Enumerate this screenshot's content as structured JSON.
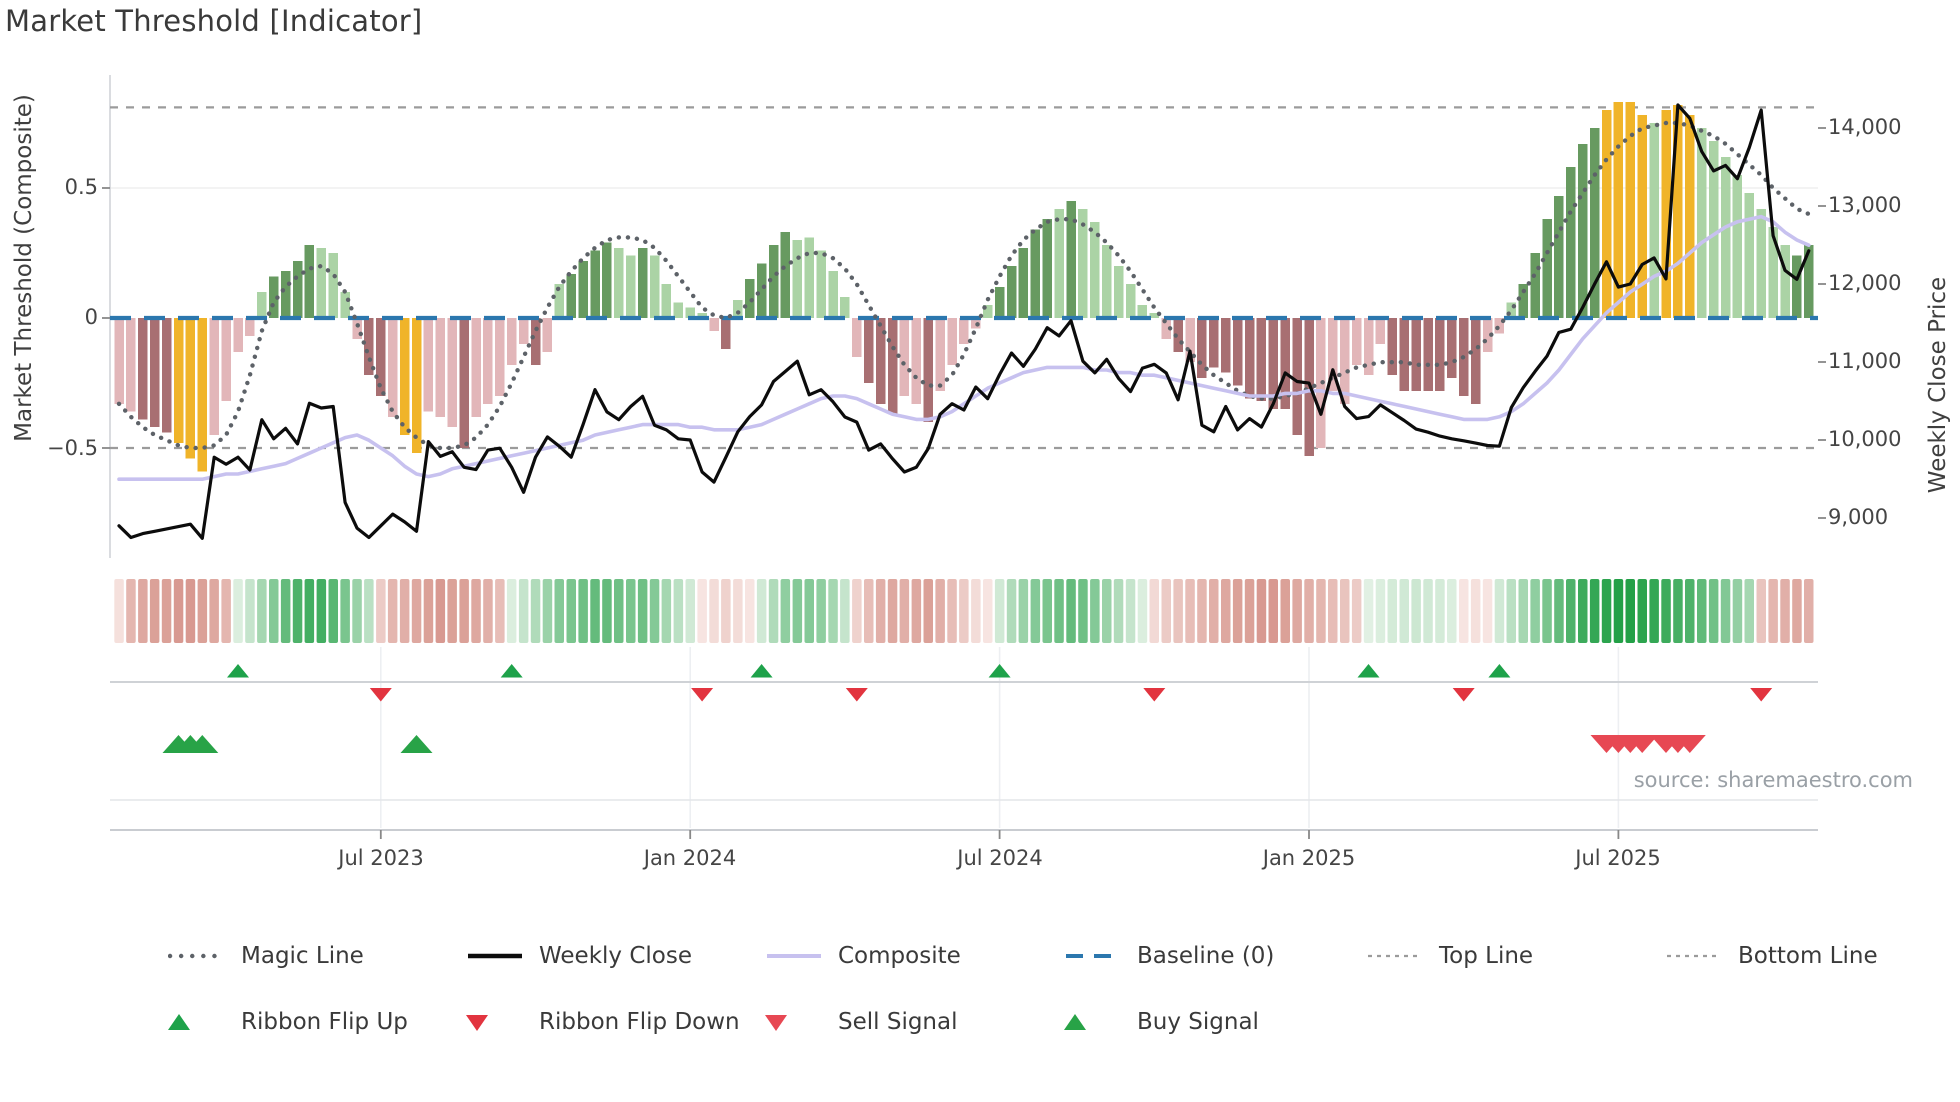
{
  "title": "Market Threshold [Indicator]",
  "source": "source: sharemaestro.com",
  "axes": {
    "left_label": "Market Threshold (Composite)",
    "right_label": "Weekly Close Price",
    "left_ticks": [
      "0.5",
      "0",
      "−0.5"
    ],
    "left_tick_values": [
      0.5,
      0,
      -0.5
    ],
    "right_ticks": [
      "14,000",
      "13,000",
      "12,000",
      "11,000",
      "10,000",
      "9,000"
    ],
    "right_tick_values": [
      14000,
      13000,
      12000,
      11000,
      10000,
      9000
    ],
    "x_ticks": [
      "Jul 2023",
      "Jan 2024",
      "Jul 2024",
      "Jan 2025",
      "Jul 2025"
    ]
  },
  "legend": {
    "row1": [
      {
        "label": "Magic Line",
        "swatch": "dotted-gray"
      },
      {
        "label": "Weekly Close",
        "swatch": "solid-black"
      },
      {
        "label": "Composite",
        "swatch": "solid-purple"
      },
      {
        "label": "Baseline (0)",
        "swatch": "dashed-blue"
      },
      {
        "label": "Top Line",
        "swatch": "dashed-gray"
      },
      {
        "label": "Bottom Line",
        "swatch": "dashed-gray"
      }
    ],
    "row2": [
      {
        "label": "Ribbon Flip Up",
        "swatch": "triangle-up-green"
      },
      {
        "label": "Ribbon Flip Down",
        "swatch": "triangle-down-red"
      },
      {
        "label": "Sell Signal",
        "swatch": "triangle-down-sell"
      },
      {
        "label": "Buy Signal",
        "swatch": "triangle-up-buy"
      }
    ]
  },
  "colors": {
    "bar_pink": "#e2b6b9",
    "bar_mauve": "#a86f72",
    "bar_gold": "#f0b429",
    "bar_light_green": "#abd3a5",
    "bar_dark_green": "#679a60",
    "baseline_blue": "#2b77ae",
    "composite_purple": "#c7c1ef",
    "magic_gray": "#5d6268",
    "close_black": "#0c0c0c",
    "band_gray": "#9b9b9b",
    "grid_light": "#ececec",
    "signal_green": "#1ea24a",
    "signal_red": "#e2343f",
    "sell_red": "#e74853",
    "buy_green": "#28a347",
    "ribbon_green_max": "#23a047",
    "ribbon_red_max": "#c4685c",
    "text_soft": "#9aa0a6"
  },
  "chart_data": {
    "type": "bar",
    "subtype": "composite-indicator-with-price-overlay",
    "title": "Market Threshold [Indicator]",
    "xlabel": "",
    "ylabel_left": "Market Threshold (Composite)",
    "ylabel_right": "Weekly Close Price",
    "weeks": 143,
    "x_tick_weeks": [
      22,
      48,
      74,
      100,
      126
    ],
    "x_tick_labels": [
      "Jul 2023",
      "Jan 2024",
      "Jul 2024",
      "Jan 2025",
      "Jul 2025"
    ],
    "left_ylim": [
      -0.92,
      0.94
    ],
    "right_ylim": [
      8550,
      14680
    ],
    "reference_lines": {
      "baseline": 0,
      "top_line": 0.81,
      "bottom_line": -0.5
    },
    "grid": "single horizontal gridline at +0.5; faint vertical gridlines in signal panel at date ticks",
    "legend_position": "bottom, two rows",
    "histogram": [
      -0.33,
      -0.36,
      -0.39,
      -0.42,
      -0.44,
      -0.48,
      -0.54,
      -0.59,
      -0.45,
      -0.32,
      -0.13,
      -0.07,
      0.1,
      0.16,
      0.18,
      0.22,
      0.28,
      0.27,
      0.25,
      0.1,
      -0.08,
      -0.22,
      -0.3,
      -0.38,
      -0.45,
      -0.52,
      -0.36,
      -0.38,
      -0.42,
      -0.5,
      -0.38,
      -0.33,
      -0.3,
      -0.18,
      -0.1,
      -0.18,
      -0.13,
      0.13,
      0.17,
      0.22,
      0.26,
      0.29,
      0.27,
      0.24,
      0.27,
      0.24,
      0.13,
      0.06,
      0.04,
      0.02,
      -0.05,
      -0.12,
      0.07,
      0.15,
      0.21,
      0.28,
      0.33,
      0.3,
      0.31,
      0.26,
      0.18,
      0.08,
      -0.15,
      -0.25,
      -0.33,
      -0.37,
      -0.3,
      -0.33,
      -0.4,
      -0.28,
      -0.18,
      -0.1,
      -0.04,
      0.05,
      0.12,
      0.2,
      0.27,
      0.34,
      0.38,
      0.42,
      0.45,
      0.42,
      0.37,
      0.28,
      0.2,
      0.13,
      0.05,
      0.02,
      -0.08,
      -0.13,
      -0.17,
      -0.23,
      -0.19,
      -0.21,
      -0.26,
      -0.31,
      -0.32,
      -0.35,
      -0.35,
      -0.45,
      -0.53,
      -0.5,
      -0.28,
      -0.33,
      -0.18,
      -0.22,
      -0.1,
      -0.22,
      -0.28,
      -0.28,
      -0.28,
      -0.28,
      -0.23,
      -0.3,
      -0.33,
      -0.13,
      -0.06,
      0.06,
      0.13,
      0.25,
      0.38,
      0.47,
      0.58,
      0.67,
      0.73,
      0.8,
      0.83,
      0.83,
      0.78,
      0.75,
      0.8,
      0.82,
      0.78,
      0.73,
      0.68,
      0.62,
      0.55,
      0.48,
      0.42,
      0.35,
      0.28,
      0.24,
      0.28
    ],
    "histogram_palette": "ppdddgggppppleeeelllpddpggpppdpppppdpleeeellelllllpdleeeelllllpdddppdppppleeeeelelllllllpdpddddddddddppppppddddddddppleeeeeeegggglgggllllllllee",
    "palette_key": {
      "p": "light-pink",
      "d": "dark-mauve",
      "g": "gold-highlight",
      "l": "light-green",
      "e": "dark-green"
    },
    "weekly_close": [
      8900,
      8750,
      8800,
      8830,
      8860,
      8890,
      8920,
      8740,
      9780,
      9690,
      9780,
      9615,
      10260,
      10015,
      10150,
      9950,
      10470,
      10410,
      10430,
      9200,
      8870,
      8750,
      8900,
      9050,
      8950,
      8830,
      9980,
      9790,
      9850,
      9650,
      9620,
      9870,
      9895,
      9650,
      9330,
      9780,
      10040,
      9920,
      9780,
      10200,
      10645,
      10360,
      10260,
      10430,
      10560,
      10190,
      10130,
      10015,
      10000,
      9590,
      9460,
      9780,
      10105,
      10300,
      10450,
      10750,
      10880,
      11010,
      10580,
      10645,
      10490,
      10295,
      10230,
      9870,
      9950,
      9760,
      9590,
      9650,
      9890,
      10330,
      10465,
      10385,
      10680,
      10530,
      10840,
      11115,
      10945,
      11165,
      11440,
      11335,
      11530,
      11010,
      10860,
      11035,
      10790,
      10620,
      10920,
      10970,
      10860,
      10515,
      11140,
      10190,
      10105,
      10430,
      10130,
      10275,
      10165,
      10465,
      10860,
      10750,
      10730,
      10330,
      10900,
      10430,
      10275,
      10300,
      10450,
      10350,
      10250,
      10140,
      10100,
      10050,
      10015,
      9990,
      9960,
      9930,
      9920,
      10415,
      10670,
      10880,
      11075,
      11380,
      11420,
      11700,
      12000,
      12285,
      11960,
      12000,
      12250,
      12335,
      12065,
      14295,
      14125,
      13700,
      13450,
      13520,
      13350,
      13750,
      14230,
      12620,
      12175,
      12060,
      12425
    ],
    "composite": [
      -0.62,
      -0.62,
      -0.62,
      -0.62,
      -0.62,
      -0.62,
      -0.62,
      -0.62,
      -0.61,
      -0.6,
      -0.6,
      -0.59,
      -0.58,
      -0.57,
      -0.56,
      -0.54,
      -0.52,
      -0.5,
      -0.48,
      -0.46,
      -0.45,
      -0.47,
      -0.5,
      -0.53,
      -0.57,
      -0.6,
      -0.61,
      -0.6,
      -0.58,
      -0.57,
      -0.56,
      -0.55,
      -0.54,
      -0.53,
      -0.52,
      -0.51,
      -0.5,
      -0.49,
      -0.48,
      -0.47,
      -0.45,
      -0.44,
      -0.43,
      -0.42,
      -0.41,
      -0.41,
      -0.41,
      -0.41,
      -0.42,
      -0.42,
      -0.43,
      -0.43,
      -0.43,
      -0.42,
      -0.41,
      -0.39,
      -0.37,
      -0.35,
      -0.33,
      -0.31,
      -0.3,
      -0.3,
      -0.31,
      -0.33,
      -0.35,
      -0.37,
      -0.38,
      -0.39,
      -0.39,
      -0.38,
      -0.36,
      -0.33,
      -0.3,
      -0.27,
      -0.25,
      -0.23,
      -0.21,
      -0.2,
      -0.19,
      -0.19,
      -0.19,
      -0.19,
      -0.2,
      -0.2,
      -0.21,
      -0.21,
      -0.22,
      -0.22,
      -0.23,
      -0.24,
      -0.25,
      -0.26,
      -0.27,
      -0.28,
      -0.29,
      -0.3,
      -0.3,
      -0.3,
      -0.29,
      -0.29,
      -0.28,
      -0.28,
      -0.29,
      -0.29,
      -0.3,
      -0.31,
      -0.32,
      -0.33,
      -0.34,
      -0.35,
      -0.36,
      -0.37,
      -0.38,
      -0.39,
      -0.39,
      -0.39,
      -0.38,
      -0.36,
      -0.33,
      -0.29,
      -0.25,
      -0.2,
      -0.14,
      -0.08,
      -0.03,
      0.02,
      0.06,
      0.1,
      0.13,
      0.16,
      0.18,
      0.21,
      0.25,
      0.29,
      0.32,
      0.35,
      0.37,
      0.38,
      0.39,
      0.37,
      0.33,
      0.3,
      0.28
    ],
    "magic_line": [
      -0.33,
      -0.38,
      -0.42,
      -0.45,
      -0.47,
      -0.49,
      -0.5,
      -0.5,
      -0.49,
      -0.45,
      -0.36,
      -0.22,
      -0.05,
      0.06,
      0.12,
      0.16,
      0.19,
      0.2,
      0.17,
      0.1,
      -0.02,
      -0.15,
      -0.27,
      -0.36,
      -0.42,
      -0.46,
      -0.49,
      -0.5,
      -0.5,
      -0.49,
      -0.46,
      -0.41,
      -0.34,
      -0.25,
      -0.15,
      -0.05,
      0.04,
      0.12,
      0.18,
      0.23,
      0.27,
      0.3,
      0.31,
      0.31,
      0.3,
      0.27,
      0.22,
      0.16,
      0.1,
      0.04,
      0.01,
      0.0,
      0.02,
      0.06,
      0.11,
      0.16,
      0.2,
      0.23,
      0.25,
      0.25,
      0.23,
      0.19,
      0.13,
      0.05,
      -0.03,
      -0.11,
      -0.18,
      -0.23,
      -0.26,
      -0.26,
      -0.22,
      -0.14,
      -0.04,
      0.07,
      0.16,
      0.24,
      0.3,
      0.34,
      0.37,
      0.38,
      0.38,
      0.36,
      0.33,
      0.29,
      0.24,
      0.18,
      0.11,
      0.04,
      -0.02,
      -0.08,
      -0.13,
      -0.18,
      -0.22,
      -0.25,
      -0.28,
      -0.3,
      -0.31,
      -0.31,
      -0.3,
      -0.29,
      -0.27,
      -0.25,
      -0.23,
      -0.21,
      -0.19,
      -0.18,
      -0.17,
      -0.17,
      -0.17,
      -0.18,
      -0.18,
      -0.18,
      -0.17,
      -0.15,
      -0.12,
      -0.08,
      -0.03,
      0.03,
      0.1,
      0.17,
      0.25,
      0.33,
      0.41,
      0.48,
      0.55,
      0.61,
      0.66,
      0.7,
      0.73,
      0.74,
      0.75,
      0.75,
      0.74,
      0.72,
      0.7,
      0.67,
      0.63,
      0.59,
      0.55,
      0.5,
      0.46,
      0.42,
      0.4
    ],
    "ribbon": [
      -0.15,
      -0.45,
      -0.55,
      -0.6,
      -0.6,
      -0.65,
      -0.65,
      -0.6,
      -0.55,
      -0.45,
      0.15,
      0.25,
      0.4,
      0.55,
      0.7,
      0.8,
      0.85,
      0.85,
      0.75,
      0.6,
      0.45,
      0.3,
      -0.3,
      -0.45,
      -0.5,
      -0.55,
      -0.6,
      -0.65,
      -0.6,
      -0.6,
      -0.55,
      -0.5,
      -0.4,
      0.15,
      0.25,
      0.35,
      0.45,
      0.55,
      0.6,
      0.65,
      0.7,
      0.7,
      0.65,
      0.6,
      0.65,
      0.55,
      0.4,
      0.3,
      0.2,
      -0.12,
      -0.18,
      -0.25,
      -0.18,
      -0.12,
      0.2,
      0.35,
      0.5,
      0.55,
      0.55,
      0.5,
      0.4,
      0.25,
      -0.25,
      -0.4,
      -0.5,
      -0.55,
      -0.5,
      -0.55,
      -0.6,
      -0.5,
      -0.4,
      -0.3,
      -0.18,
      -0.12,
      0.2,
      0.35,
      0.45,
      0.55,
      0.6,
      0.65,
      0.7,
      0.65,
      0.55,
      0.45,
      0.35,
      0.25,
      0.15,
      -0.2,
      -0.3,
      -0.35,
      -0.4,
      -0.45,
      -0.5,
      -0.55,
      -0.6,
      -0.6,
      -0.65,
      -0.65,
      -0.6,
      -0.55,
      -0.5,
      -0.45,
      -0.4,
      -0.35,
      -0.3,
      0.12,
      0.15,
      0.18,
      0.2,
      0.22,
      0.2,
      0.18,
      0.15,
      -0.12,
      -0.15,
      -0.12,
      0.2,
      0.3,
      0.4,
      0.5,
      0.6,
      0.7,
      0.8,
      0.88,
      0.92,
      0.96,
      1.0,
      1.0,
      0.96,
      0.92,
      0.88,
      0.84,
      0.8,
      0.72,
      0.64,
      0.56,
      0.48,
      0.4,
      -0.35,
      -0.45,
      -0.5,
      -0.55,
      -0.5
    ],
    "signals": {
      "ribbon_flip_up_weeks": [
        10,
        33,
        54,
        74,
        105,
        116
      ],
      "ribbon_flip_down_weeks": [
        22,
        49,
        62,
        87,
        113,
        138
      ],
      "buy_signal_weeks": [
        5,
        6,
        7,
        25
      ],
      "sell_signal_weeks": [
        125,
        126,
        127,
        128,
        130,
        131,
        132
      ]
    }
  }
}
